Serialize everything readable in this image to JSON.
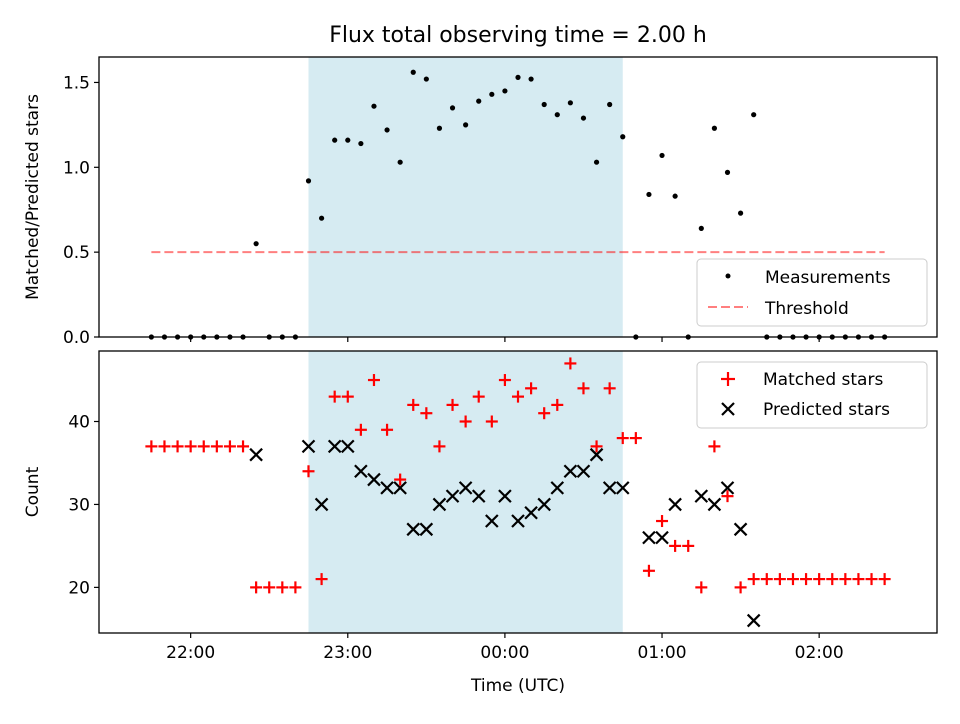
{
  "figure": {
    "title": "Flux total observing time = 2.00 h"
  },
  "colors": {
    "span": "#add8e6",
    "threshold": "#ff0000",
    "measurement": "#000000",
    "matched": "#ff0000",
    "predicted": "#000000"
  },
  "chart_data": [
    {
      "type": "scatter",
      "ylabel": "Matched/Predicted stars",
      "ylim": [
        0,
        1.65
      ],
      "yticks": [
        0.0,
        0.5,
        1.0,
        1.5
      ],
      "ytick_labels": [
        "0.0",
        "0.5",
        "1.0",
        "1.5"
      ],
      "xlim": [
        "21:25",
        "02:45"
      ],
      "shaded_interval": [
        "22:45",
        "00:45"
      ],
      "legend_position": "bottom-right",
      "legend": [
        "Measurements",
        "Threshold"
      ],
      "threshold": {
        "name": "Threshold",
        "value": 0.5,
        "x_range": [
          "21:45",
          "02:25"
        ]
      },
      "measurements": {
        "name": "Measurements",
        "x": [
          "21:45",
          "21:50",
          "21:55",
          "22:00",
          "22:05",
          "22:10",
          "22:15",
          "22:20",
          "22:25",
          "22:30",
          "22:35",
          "22:40",
          "22:45",
          "22:50",
          "22:55",
          "23:00",
          "23:05",
          "23:10",
          "23:15",
          "23:20",
          "23:25",
          "23:30",
          "23:35",
          "23:40",
          "23:45",
          "23:50",
          "23:55",
          "00:00",
          "00:05",
          "00:10",
          "00:15",
          "00:20",
          "00:25",
          "00:30",
          "00:35",
          "00:40",
          "00:45",
          "00:50",
          "00:55",
          "01:00",
          "01:05",
          "01:10",
          "01:15",
          "01:20",
          "01:25",
          "01:30",
          "01:35",
          "01:40",
          "01:45",
          "01:50",
          "01:55",
          "02:00",
          "02:05",
          "02:10",
          "02:15",
          "02:20",
          "02:25"
        ],
        "y": [
          0,
          0,
          0,
          0,
          0,
          0,
          0,
          0,
          0.55,
          0,
          0,
          0,
          0.92,
          0.7,
          1.16,
          1.16,
          1.14,
          1.36,
          1.22,
          1.03,
          1.56,
          1.52,
          1.23,
          1.35,
          1.25,
          1.39,
          1.43,
          1.45,
          1.53,
          1.52,
          1.37,
          1.31,
          1.38,
          1.29,
          1.03,
          1.37,
          1.18,
          0,
          0.84,
          1.07,
          0.83,
          0,
          0.64,
          1.23,
          0.97,
          0.73,
          1.31,
          0,
          0,
          0,
          0,
          0,
          0,
          0,
          0,
          0,
          0
        ]
      }
    },
    {
      "type": "scatter",
      "xlabel": "Time (UTC)",
      "ylabel": "Count",
      "ylim": [
        14.5,
        48.5
      ],
      "yticks": [
        20,
        30,
        40
      ],
      "ytick_labels": [
        "20",
        "30",
        "40"
      ],
      "xlim": [
        "21:25",
        "02:45"
      ],
      "xticks": [
        "22:00",
        "23:00",
        "00:00",
        "01:00",
        "02:00"
      ],
      "shaded_interval": [
        "22:45",
        "00:45"
      ],
      "legend_position": "top-right",
      "legend": [
        "Matched stars",
        "Predicted stars"
      ],
      "series": [
        {
          "name": "Matched stars",
          "x": [
            "21:45",
            "21:50",
            "21:55",
            "22:00",
            "22:05",
            "22:10",
            "22:15",
            "22:20",
            "22:25",
            "22:30",
            "22:35",
            "22:40",
            "22:45",
            "22:50",
            "22:55",
            "23:00",
            "23:05",
            "23:10",
            "23:15",
            "23:20",
            "23:25",
            "23:30",
            "23:35",
            "23:40",
            "23:45",
            "23:50",
            "23:55",
            "00:00",
            "00:05",
            "00:10",
            "00:15",
            "00:20",
            "00:25",
            "00:30",
            "00:35",
            "00:40",
            "00:45",
            "00:50",
            "00:55",
            "01:00",
            "01:05",
            "01:10",
            "01:15",
            "01:20",
            "01:25",
            "01:30",
            "01:35",
            "01:40",
            "01:45",
            "01:50",
            "01:55",
            "02:00",
            "02:05",
            "02:10",
            "02:15",
            "02:20",
            "02:25"
          ],
          "y": [
            37,
            37,
            37,
            37,
            37,
            37,
            37,
            37,
            20,
            20,
            20,
            20,
            34,
            21,
            43,
            43,
            39,
            45,
            39,
            33,
            42,
            41,
            37,
            42,
            40,
            43,
            40,
            45,
            43,
            44,
            41,
            42,
            47,
            44,
            37,
            44,
            38,
            38,
            22,
            28,
            25,
            25,
            20,
            37,
            31,
            20,
            21,
            21,
            21,
            21,
            21,
            21,
            21,
            21,
            21,
            21,
            21
          ]
        },
        {
          "name": "Predicted stars",
          "x": [
            "22:25",
            "22:45",
            "22:50",
            "22:55",
            "23:00",
            "23:05",
            "23:10",
            "23:15",
            "23:20",
            "23:25",
            "23:30",
            "23:35",
            "23:40",
            "23:45",
            "23:50",
            "23:55",
            "00:00",
            "00:05",
            "00:10",
            "00:15",
            "00:20",
            "00:25",
            "00:30",
            "00:35",
            "00:40",
            "00:45",
            "00:55",
            "01:00",
            "01:05",
            "01:15",
            "01:20",
            "01:25",
            "01:30",
            "01:35"
          ],
          "y": [
            36,
            37,
            30,
            37,
            37,
            34,
            33,
            32,
            32,
            27,
            27,
            30,
            31,
            32,
            31,
            28,
            31,
            28,
            29,
            30,
            32,
            34,
            34,
            36,
            32,
            32,
            26,
            26,
            30,
            31,
            30,
            32,
            27,
            16
          ]
        }
      ]
    }
  ]
}
